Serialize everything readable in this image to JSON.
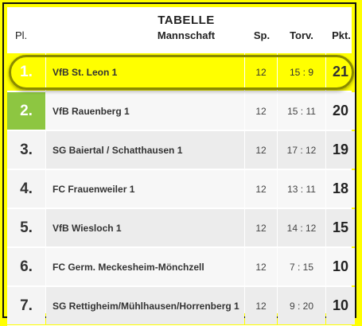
{
  "header": {
    "title": "TABELLE",
    "col_pl": "Pl.",
    "col_team": "Mannschaft",
    "col_sp": "Sp.",
    "col_torv": "Torv.",
    "col_pkt": "Pkt."
  },
  "rows": [
    {
      "pl": "1.",
      "team": "VfB St. Leon 1",
      "sp": "12",
      "torv": "15 : 9",
      "pkt": "21"
    },
    {
      "pl": "2.",
      "team": "VfB Rauenberg 1",
      "sp": "12",
      "torv": "15 : 11",
      "pkt": "20"
    },
    {
      "pl": "3.",
      "team": "SG Baiertal / Schatthausen 1",
      "sp": "12",
      "torv": "17 : 12",
      "pkt": "19"
    },
    {
      "pl": "4.",
      "team": "FC Frauenweiler 1",
      "sp": "12",
      "torv": "13 : 11",
      "pkt": "18"
    },
    {
      "pl": "5.",
      "team": "VfB Wiesloch 1",
      "sp": "12",
      "torv": "14 : 12",
      "pkt": "15"
    },
    {
      "pl": "6.",
      "team": "FC Germ. Meckesheim-Mönchzell",
      "sp": "12",
      "torv": "7 : 15",
      "pkt": "10"
    },
    {
      "pl": "7.",
      "team": "SG Rettigheim/Mühlhausen/Horrenberg 1",
      "sp": "12",
      "torv": "9 : 20",
      "pkt": "10"
    }
  ],
  "colors": {
    "highlight": "#ffff00",
    "promotion": "#8dc641",
    "frame": "#ffff00"
  }
}
